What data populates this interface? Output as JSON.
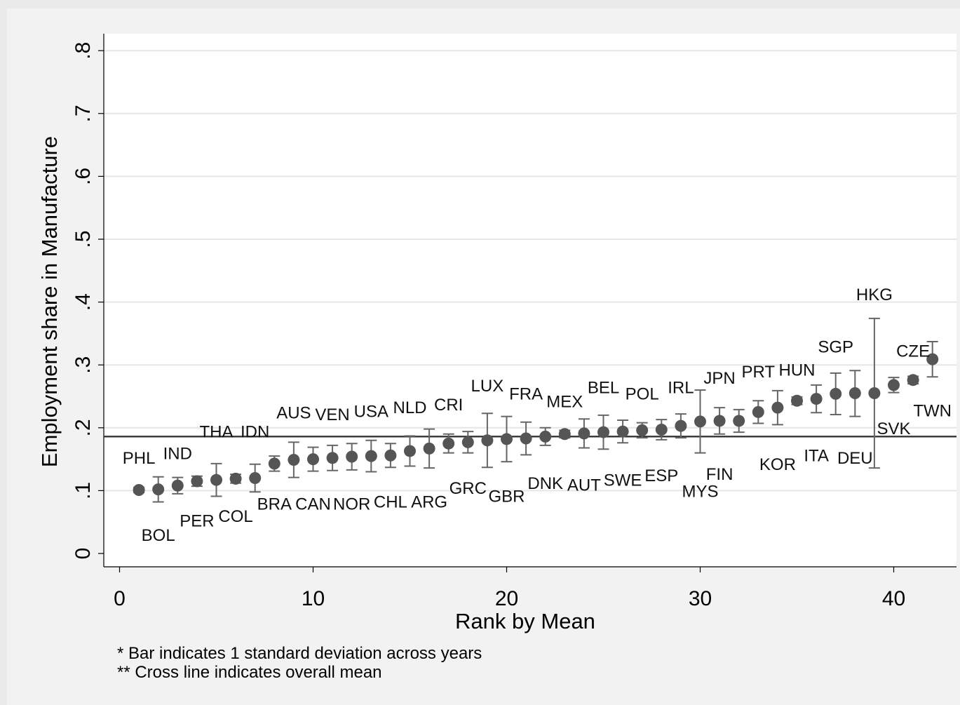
{
  "chart_data": {
    "type": "scatter",
    "xlabel": "Rank by Mean",
    "ylabel": "Employment share in Manufacture",
    "xlim": [
      -0.5,
      42.8
    ],
    "ylim": [
      -0.02,
      0.83
    ],
    "x_ticks": [
      0,
      10,
      20,
      30,
      40
    ],
    "x_tick_labels": [
      "0",
      "10",
      "20",
      "30",
      "40"
    ],
    "y_ticks": [
      0,
      0.1,
      0.2,
      0.3,
      0.4,
      0.5,
      0.6,
      0.7,
      0.8
    ],
    "y_tick_labels": [
      "0",
      ".1",
      ".2",
      ".3",
      ".4",
      ".5",
      ".6",
      ".7",
      ".8"
    ],
    "grid": true,
    "mean_line": 0.186,
    "notes": [
      "* Bar indicates 1 standard deviation across years",
      "** Cross line indicates overall mean"
    ],
    "colors": {
      "background": "#eaeaea",
      "plot_background": "#ffffff",
      "marker": "#555555",
      "error_bar": "#666666",
      "mean_line": "#333333",
      "grid": "#e6e6e6"
    },
    "points": [
      {
        "rank": 1,
        "label": "PHL",
        "mean": 0.101,
        "low": 0.097,
        "high": 0.105,
        "lx": 1.0,
        "ly": 0.153
      },
      {
        "rank": 2,
        "label": "BOL",
        "mean": 0.102,
        "low": 0.082,
        "high": 0.122,
        "lx": 2.0,
        "ly": 0.03
      },
      {
        "rank": 3,
        "label": "IND",
        "mean": 0.108,
        "low": 0.095,
        "high": 0.121,
        "lx": 3.0,
        "ly": 0.16
      },
      {
        "rank": 4,
        "label": "PER",
        "mean": 0.115,
        "low": 0.107,
        "high": 0.123,
        "lx": 4.0,
        "ly": 0.053
      },
      {
        "rank": 5,
        "label": "THA",
        "mean": 0.117,
        "low": 0.091,
        "high": 0.143,
        "lx": 5.0,
        "ly": 0.195
      },
      {
        "rank": 6,
        "label": "COL",
        "mean": 0.119,
        "low": 0.112,
        "high": 0.126,
        "lx": 6.0,
        "ly": 0.06
      },
      {
        "rank": 7,
        "label": "IDN",
        "mean": 0.12,
        "low": 0.098,
        "high": 0.142,
        "lx": 7.0,
        "ly": 0.195
      },
      {
        "rank": 8,
        "label": "BRA",
        "mean": 0.143,
        "low": 0.131,
        "high": 0.155,
        "lx": 8.0,
        "ly": 0.08
      },
      {
        "rank": 9,
        "label": "AUS",
        "mean": 0.149,
        "low": 0.121,
        "high": 0.177,
        "lx": 9.0,
        "ly": 0.225
      },
      {
        "rank": 10,
        "label": "CAN",
        "mean": 0.15,
        "low": 0.131,
        "high": 0.169,
        "lx": 10.0,
        "ly": 0.08
      },
      {
        "rank": 11,
        "label": "VEN",
        "mean": 0.152,
        "low": 0.132,
        "high": 0.172,
        "lx": 11.0,
        "ly": 0.222
      },
      {
        "rank": 12,
        "label": "NOR",
        "mean": 0.154,
        "low": 0.133,
        "high": 0.175,
        "lx": 12.0,
        "ly": 0.08
      },
      {
        "rank": 13,
        "label": "USA",
        "mean": 0.155,
        "low": 0.13,
        "high": 0.18,
        "lx": 13.0,
        "ly": 0.227
      },
      {
        "rank": 14,
        "label": "CHL",
        "mean": 0.156,
        "low": 0.137,
        "high": 0.175,
        "lx": 14.0,
        "ly": 0.083
      },
      {
        "rank": 15,
        "label": "NLD",
        "mean": 0.163,
        "low": 0.139,
        "high": 0.187,
        "lx": 15.0,
        "ly": 0.233
      },
      {
        "rank": 16,
        "label": "ARG",
        "mean": 0.167,
        "low": 0.136,
        "high": 0.198,
        "lx": 16.0,
        "ly": 0.083
      },
      {
        "rank": 17,
        "label": "CRI",
        "mean": 0.175,
        "low": 0.16,
        "high": 0.19,
        "lx": 17.0,
        "ly": 0.238
      },
      {
        "rank": 18,
        "label": "GRC",
        "mean": 0.177,
        "low": 0.16,
        "high": 0.194,
        "lx": 18.0,
        "ly": 0.105
      },
      {
        "rank": 19,
        "label": "LUX",
        "mean": 0.18,
        "low": 0.137,
        "high": 0.223,
        "lx": 19.0,
        "ly": 0.268
      },
      {
        "rank": 20,
        "label": "GBR",
        "mean": 0.182,
        "low": 0.146,
        "high": 0.218,
        "lx": 20.0,
        "ly": 0.092
      },
      {
        "rank": 21,
        "label": "FRA",
        "mean": 0.183,
        "low": 0.157,
        "high": 0.209,
        "lx": 21.0,
        "ly": 0.255
      },
      {
        "rank": 22,
        "label": "DNK",
        "mean": 0.186,
        "low": 0.172,
        "high": 0.2,
        "lx": 22.0,
        "ly": 0.113
      },
      {
        "rank": 23,
        "label": "MEX",
        "mean": 0.19,
        "low": 0.184,
        "high": 0.196,
        "lx": 23.0,
        "ly": 0.243
      },
      {
        "rank": 24,
        "label": "AUT",
        "mean": 0.191,
        "low": 0.168,
        "high": 0.214,
        "lx": 24.0,
        "ly": 0.11
      },
      {
        "rank": 25,
        "label": "BEL",
        "mean": 0.193,
        "low": 0.166,
        "high": 0.22,
        "lx": 25.0,
        "ly": 0.265
      },
      {
        "rank": 26,
        "label": "SWE",
        "mean": 0.194,
        "low": 0.176,
        "high": 0.212,
        "lx": 26.0,
        "ly": 0.118
      },
      {
        "rank": 27,
        "label": "POL",
        "mean": 0.196,
        "low": 0.184,
        "high": 0.208,
        "lx": 27.0,
        "ly": 0.255
      },
      {
        "rank": 28,
        "label": "ESP",
        "mean": 0.197,
        "low": 0.181,
        "high": 0.213,
        "lx": 28.0,
        "ly": 0.125
      },
      {
        "rank": 29,
        "label": "IRL",
        "mean": 0.203,
        "low": 0.184,
        "high": 0.222,
        "lx": 29.0,
        "ly": 0.265
      },
      {
        "rank": 30,
        "label": "MYS",
        "mean": 0.21,
        "low": 0.16,
        "high": 0.26,
        "lx": 30.0,
        "ly": 0.1
      },
      {
        "rank": 31,
        "label": "JPN",
        "mean": 0.211,
        "low": 0.19,
        "high": 0.232,
        "lx": 31.0,
        "ly": 0.28
      },
      {
        "rank": 32,
        "label": "FIN",
        "mean": 0.211,
        "low": 0.193,
        "high": 0.229,
        "lx": 31.0,
        "ly": 0.127
      },
      {
        "rank": 33,
        "label": "PRT",
        "mean": 0.225,
        "low": 0.207,
        "high": 0.243,
        "lx": 33.0,
        "ly": 0.29
      },
      {
        "rank": 34,
        "label": "KOR",
        "mean": 0.232,
        "low": 0.205,
        "high": 0.259,
        "lx": 34.0,
        "ly": 0.143
      },
      {
        "rank": 35,
        "label": "HUN",
        "mean": 0.243,
        "low": 0.237,
        "high": 0.249,
        "lx": 35.0,
        "ly": 0.293
      },
      {
        "rank": 36,
        "label": "ITA",
        "mean": 0.246,
        "low": 0.224,
        "high": 0.268,
        "lx": 36.0,
        "ly": 0.157
      },
      {
        "rank": 37,
        "label": "SGP",
        "mean": 0.254,
        "low": 0.221,
        "high": 0.287,
        "lx": 37.0,
        "ly": 0.33
      },
      {
        "rank": 38,
        "label": "DEU",
        "mean": 0.255,
        "low": 0.218,
        "high": 0.291,
        "lx": 38.0,
        "ly": 0.153
      },
      {
        "rank": 39,
        "label": "HKG",
        "mean": 0.255,
        "low": 0.136,
        "high": 0.374,
        "lx": 39.0,
        "ly": 0.413
      },
      {
        "rank": 40,
        "label": "SVK",
        "mean": 0.268,
        "low": 0.256,
        "high": 0.28,
        "lx": 40.0,
        "ly": 0.2
      },
      {
        "rank": 41,
        "label": "CZE",
        "mean": 0.276,
        "low": 0.27,
        "high": 0.282,
        "lx": 41.0,
        "ly": 0.323
      },
      {
        "rank": 42,
        "label": "TWN",
        "mean": 0.309,
        "low": 0.281,
        "high": 0.337,
        "lx": 42.0,
        "ly": 0.228
      }
    ]
  }
}
